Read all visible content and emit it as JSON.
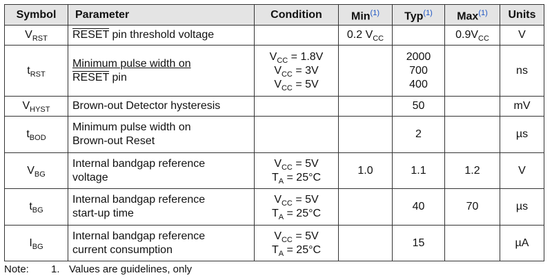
{
  "headers": {
    "symbol": "Symbol",
    "parameter": "Parameter",
    "condition": "Condition",
    "min": "Min",
    "typ": "Typ",
    "max": "Max",
    "units": "Units",
    "footnote_ref": "(1)"
  },
  "rows": [
    {
      "symbol": {
        "main": "V",
        "sub": "RST"
      },
      "param": {
        "overline": "RESET",
        "rest": " pin threshold voltage"
      },
      "min": {
        "main": "0.2 V",
        "sub": "CC"
      },
      "max": {
        "main": "0.9V",
        "sub": "CC"
      },
      "units": "V"
    },
    {
      "symbol": {
        "main": "t",
        "sub": "RST"
      },
      "param": {
        "line1": "Minimum pulse width on",
        "line2_overline": "RESET",
        "line2_rest": " pin"
      },
      "conditions": [
        {
          "main": "V",
          "sub": "CC",
          "value": " = 1.8V"
        },
        {
          "main": "V",
          "sub": "CC",
          "value": " = 3V"
        },
        {
          "main": "V",
          "sub": "CC",
          "value": " = 5V"
        }
      ],
      "typ": [
        "2000",
        "700",
        "400"
      ],
      "units": "ns"
    },
    {
      "symbol": {
        "main": "V",
        "sub": "HYST"
      },
      "param": "Brown-out Detector hysteresis",
      "typ": "50",
      "units": "mV"
    },
    {
      "symbol": {
        "main": "t",
        "sub": "BOD"
      },
      "param": {
        "line1": "Minimum pulse width on",
        "line2": "Brown-out Reset"
      },
      "typ": "2",
      "units": "µs"
    },
    {
      "symbol": {
        "main": "V",
        "sub": "BG"
      },
      "param": {
        "line1": "Internal bandgap reference",
        "line2": "voltage"
      },
      "conditions": [
        {
          "main": "V",
          "sub": "CC",
          "value": " = 5V"
        },
        {
          "main": "T",
          "sub": "A",
          "value": " = 25°C"
        }
      ],
      "min": "1.0",
      "typ": "1.1",
      "max": "1.2",
      "units": "V"
    },
    {
      "symbol": {
        "main": "t",
        "sub": "BG"
      },
      "param": {
        "line1": "Internal bandgap reference",
        "line2": "start-up time"
      },
      "conditions": [
        {
          "main": "V",
          "sub": "CC",
          "value": " = 5V"
        },
        {
          "main": "T",
          "sub": "A",
          "value": " = 25°C"
        }
      ],
      "typ": "40",
      "max": "70",
      "units": "µs"
    },
    {
      "symbol": {
        "main": "I",
        "sub": "BG"
      },
      "param": {
        "line1": "Internal bandgap reference",
        "line2": "current consumption"
      },
      "conditions": [
        {
          "main": "V",
          "sub": "CC",
          "value": " = 5V"
        },
        {
          "main": "T",
          "sub": "A",
          "value": " = 25°C"
        }
      ],
      "typ": "15",
      "units": "µA"
    }
  ],
  "note": {
    "label": "Note:",
    "number": "1.",
    "text": "Values are guidelines, only"
  },
  "colors": {
    "header_bg": "#e4e4e4",
    "border": "#333333",
    "footnote_link": "#1f57c6"
  }
}
